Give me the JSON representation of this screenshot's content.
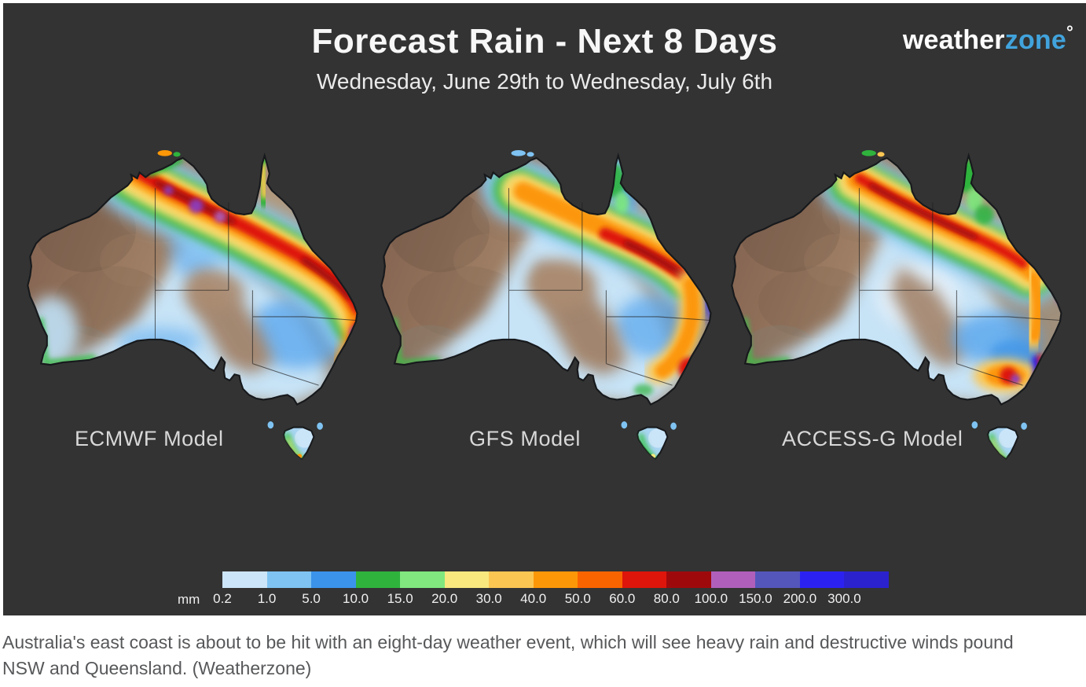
{
  "header": {
    "title": "Forecast Rain - Next 8 Days",
    "subtitle": "Wednesday, June 29th to Wednesday, July 6th"
  },
  "logo": {
    "weather": "weather",
    "zone": "zone",
    "degree": "°"
  },
  "maps": [
    {
      "label": "ECMWF Model"
    },
    {
      "label": "GFS Model"
    },
    {
      "label": "ACCESS-G Model"
    }
  ],
  "legend": {
    "unit": "mm",
    "ticks": [
      "0.2",
      "1.0",
      "5.0",
      "10.0",
      "15.0",
      "20.0",
      "30.0",
      "40.0",
      "50.0",
      "60.0",
      "80.0",
      "100.0",
      "150.0",
      "200.0",
      "300.0"
    ],
    "colors": [
      "#cde5f8",
      "#7fc3f2",
      "#3b93ea",
      "#2fb33d",
      "#80e87e",
      "#f9e87e",
      "#fcc653",
      "#fc9708",
      "#fa6400",
      "#de150b",
      "#9e0a0c",
      "#b060bb",
      "#5556bb",
      "#2b22f2",
      "#2b22cd"
    ]
  },
  "caption": {
    "line1": "Australia's east coast is about to be hit with an eight-day weather event, which will see heavy rain and destructive winds pound",
    "line2": "NSW and Queensland. (Weatherzone)"
  },
  "colors": {
    "panel_background": "#333333",
    "brand_blue": "#41a3dc"
  }
}
